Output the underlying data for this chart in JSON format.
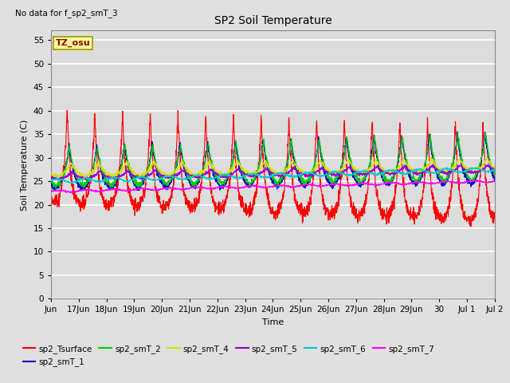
{
  "title": "SP2 Soil Temperature",
  "xlabel": "Time",
  "ylabel": "Soil Temperature (C)",
  "no_data_text": "No data for f_sp2_smT_3",
  "tz_label": "TZ_osu",
  "ylim": [
    0,
    57
  ],
  "yticks": [
    0,
    5,
    10,
    15,
    20,
    25,
    30,
    35,
    40,
    45,
    50,
    55
  ],
  "background_color": "#e8e8e8",
  "plot_bg_color": "#e8e8e8",
  "grid_color": "#ffffff",
  "series": [
    {
      "name": "sp2_Tsurface",
      "color": "#ff0000"
    },
    {
      "name": "sp2_smT_1",
      "color": "#0000cc"
    },
    {
      "name": "sp2_smT_2",
      "color": "#00cc00"
    },
    {
      "name": "sp2_smT_4",
      "color": "#dddd00"
    },
    {
      "name": "sp2_smT_5",
      "color": "#9900cc"
    },
    {
      "name": "sp2_smT_6",
      "color": "#00cccc"
    },
    {
      "name": "sp2_smT_7",
      "color": "#ff00ff"
    }
  ],
  "xtick_labels": [
    "Jun",
    "17Jun",
    "18Jun",
    "19Jun",
    "20Jun",
    "21Jun",
    "22Jun",
    "23Jun",
    "24Jun",
    "25Jun",
    "26Jun",
    "27Jun",
    "28Jun",
    "29Jun",
    "30",
    "Jul 1",
    "Jul 2"
  ],
  "n_days": 16,
  "points_per_day": 144
}
